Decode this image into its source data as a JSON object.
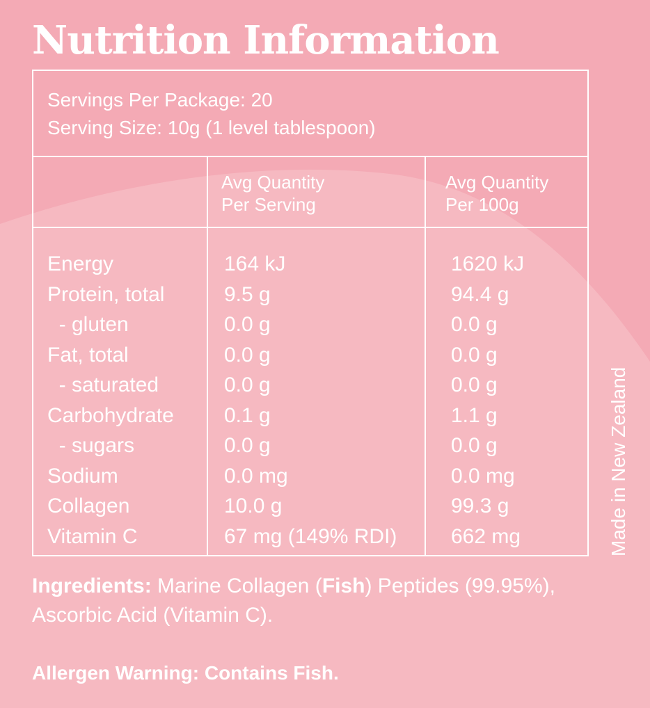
{
  "title": "Nutrition Information",
  "serving": {
    "servings_per_package": "Servings Per Package: 20",
    "serving_size": "Serving Size: 10g (1 level tablespoon)"
  },
  "columns": {
    "per_serving_line1": "Avg Quantity",
    "per_serving_line2": "Per Serving",
    "per_100g_line1": "Avg Quantity",
    "per_100g_line2": "Per 100g"
  },
  "nutrients": [
    {
      "name": "Energy",
      "per_serving": "164 kJ",
      "per_100g": "1620 kJ"
    },
    {
      "name": "Protein, total",
      "per_serving": "9.5 g",
      "per_100g": "94.4 g"
    },
    {
      "name": "  - gluten",
      "per_serving": "0.0 g",
      "per_100g": "0.0 g"
    },
    {
      "name": "Fat, total",
      "per_serving": "0.0 g",
      "per_100g": "0.0 g"
    },
    {
      "name": "  - saturated",
      "per_serving": "0.0 g",
      "per_100g": "0.0 g"
    },
    {
      "name": "Carbohydrate",
      "per_serving": "0.1 g",
      "per_100g": "1.1 g"
    },
    {
      "name": "  - sugars",
      "per_serving": "0.0 g",
      "per_100g": "0.0 g"
    },
    {
      "name": "Sodium",
      "per_serving": "0.0 mg",
      "per_100g": "0.0 mg"
    },
    {
      "name": "Collagen",
      "per_serving": "10.0 g",
      "per_100g": "99.3 g"
    },
    {
      "name": "Vitamin C",
      "per_serving": "67 mg (149% RDI)",
      "per_100g": "662 mg"
    }
  ],
  "made_in": "Made in New Zealand",
  "ingredients": {
    "label": "Ingredients:",
    "text_before": " Marine Collagen (",
    "allergen_word": "Fish",
    "text_after": ") Peptides (99.95%), Ascorbic Acid (Vitamin C)."
  },
  "allergen_warning": "Allergen Warning: Contains Fish.",
  "colors": {
    "background": "#f4aab5",
    "wave": "#f6b9c1",
    "text": "#ffffff"
  }
}
